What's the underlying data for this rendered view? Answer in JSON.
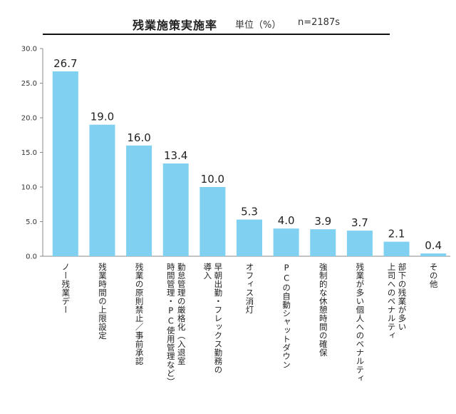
{
  "chart_data": {
    "type": "bar",
    "title": "残業施策実施率",
    "unit_label": "単位（%）",
    "sample_label": "n=2187s",
    "ylim": [
      0,
      30
    ],
    "yticks": [
      "0.0",
      "5.0",
      "10.0",
      "15.0",
      "20.0",
      "25.0",
      "30.0"
    ],
    "categories": [
      "ノー残業デー",
      "残業時間の上限設定",
      "残業の原則禁止／事前承認",
      "勤怠管理の厳格化（入退室\n時間管理・PC使用管理など）",
      "早朝出勤・フレックス勤務の\n導入",
      "オフィス消灯",
      "PCの自動シャットダウン",
      "強制的な休憩時間の確保",
      "残業が多い個人へのペナルティ",
      "部下の残業が多い\n上司へのペナルティ",
      "その他"
    ],
    "values": [
      26.7,
      19.0,
      16.0,
      13.4,
      10.0,
      5.3,
      4.0,
      3.9,
      3.7,
      2.1,
      0.4
    ],
    "value_labels": [
      "26.7",
      "19.0",
      "16.0",
      "13.4",
      "10.0",
      "5.3",
      "4.0",
      "3.9",
      "3.7",
      "2.1",
      "0.4"
    ],
    "bar_color": "#7fd0f1",
    "grid": false
  }
}
